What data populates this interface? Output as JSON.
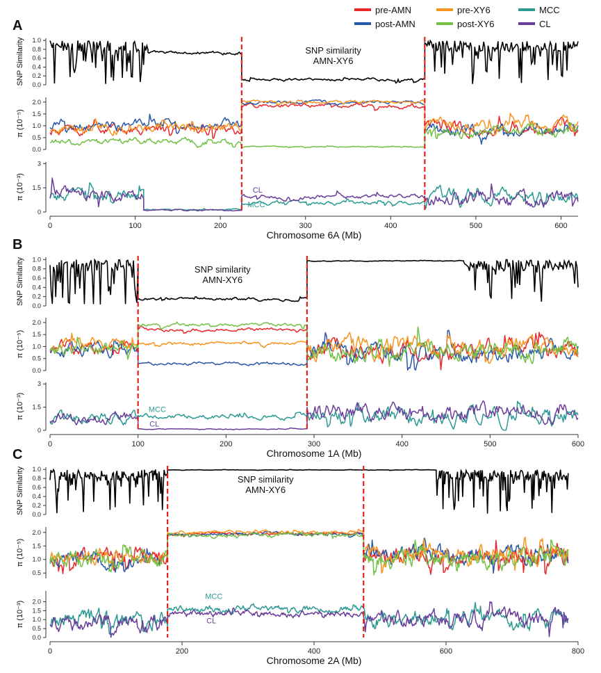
{
  "legend": [
    {
      "label": "pre-AMN",
      "color": "#e8282b"
    },
    {
      "label": "pre-XY6",
      "color": "#f7941d"
    },
    {
      "label": "MCC",
      "color": "#2b9a92"
    },
    {
      "label": "post-AMN",
      "color": "#2a57a8"
    },
    {
      "label": "post-XY6",
      "color": "#72c046"
    },
    {
      "label": "CL",
      "color": "#6a3d9a"
    }
  ],
  "chart_data": [
    {
      "panel": "A",
      "type": "line",
      "xlabel": "Chromosome 6A (Mb)",
      "xlim": [
        0,
        620
      ],
      "xticks": [
        0,
        100,
        200,
        300,
        400,
        500,
        600
      ],
      "boundaries": [
        225,
        440
      ],
      "similarity": {
        "ylabel": "SNP Similarity",
        "ylim": [
          0,
          1.05
        ],
        "yticks": [
          "0.0",
          "0.2",
          "0.4",
          "0.6",
          "0.8",
          "1.0"
        ],
        "annotation": [
          "SNP similarity",
          "AMN-XY6"
        ],
        "segments": [
          {
            "x": [
              0,
              115
            ],
            "level": 0.5,
            "noise": 0.9,
            "wild": true
          },
          {
            "x": [
              115,
              225
            ],
            "level": 0.72,
            "noise": 0.08
          },
          {
            "x": [
              225,
              440
            ],
            "level": 0.12,
            "noise": 0.07
          },
          {
            "x": [
              440,
              620
            ],
            "level": 0.65,
            "noise": 0.9,
            "wild": true
          }
        ]
      },
      "pi5": {
        "ylabel": "π (10⁻⁵)",
        "ylim": [
          0,
          2.2
        ],
        "yticks": [
          "0.0",
          "0.5",
          "1.0",
          "1.5",
          "2.0"
        ],
        "series": [
          {
            "name": "pre-AMN",
            "segments": [
              {
                "x": [
                  0,
                  225
                ],
                "level": 0.85,
                "noise": 0.45
              },
              {
                "x": [
                  225,
                  440
                ],
                "level": 1.85,
                "noise": 0.18
              },
              {
                "x": [
                  440,
                  620
                ],
                "level": 0.9,
                "noise": 0.55
              }
            ]
          },
          {
            "name": "post-AMN",
            "segments": [
              {
                "x": [
                  0,
                  225
                ],
                "level": 1.05,
                "noise": 0.45
              },
              {
                "x": [
                  225,
                  440
                ],
                "level": 2.0,
                "noise": 0.15
              },
              {
                "x": [
                  440,
                  620
                ],
                "level": 0.8,
                "noise": 0.6
              }
            ]
          },
          {
            "name": "pre-XY6",
            "segments": [
              {
                "x": [
                  0,
                  225
                ],
                "level": 0.9,
                "noise": 0.45
              },
              {
                "x": [
                  225,
                  440
                ],
                "level": 2.0,
                "noise": 0.15
              },
              {
                "x": [
                  440,
                  620
                ],
                "level": 1.0,
                "noise": 0.55
              }
            ]
          },
          {
            "name": "post-XY6",
            "segments": [
              {
                "x": [
                  0,
                  225
                ],
                "level": 0.35,
                "noise": 0.3
              },
              {
                "x": [
                  225,
                  440
                ],
                "level": 0.12,
                "noise": 0.05
              },
              {
                "x": [
                  440,
                  620
                ],
                "level": 0.8,
                "noise": 0.5
              }
            ]
          }
        ]
      },
      "pi3": {
        "ylabel": "π (10⁻³)",
        "ylim": [
          0,
          3.1
        ],
        "yticks": [
          "0",
          "1.5",
          "3"
        ],
        "labels": [
          {
            "text": "CL",
            "x": 238,
            "y": 1.2,
            "series": "CL"
          },
          {
            "text": "MCC",
            "x": 232,
            "y": 0.3,
            "series": "MCC"
          }
        ],
        "series": [
          {
            "name": "MCC",
            "segments": [
              {
                "x": [
                  0,
                  110
                ],
                "level": 1.1,
                "noise": 0.9
              },
              {
                "x": [
                  110,
                  225
                ],
                "level": 0.15,
                "noise": 0.1
              },
              {
                "x": [
                  225,
                  440
                ],
                "level": 0.55,
                "noise": 0.25
              },
              {
                "x": [
                  440,
                  620
                ],
                "level": 0.9,
                "noise": 1.0
              }
            ]
          },
          {
            "name": "CL",
            "segments": [
              {
                "x": [
                  0,
                  110
                ],
                "level": 1.1,
                "noise": 0.9
              },
              {
                "x": [
                  110,
                  225
                ],
                "level": 0.12,
                "noise": 0.1
              },
              {
                "x": [
                  225,
                  440
                ],
                "level": 0.95,
                "noise": 0.3
              },
              {
                "x": [
                  440,
                  620
                ],
                "level": 0.8,
                "noise": 1.0
              }
            ]
          }
        ]
      }
    },
    {
      "panel": "B",
      "type": "line",
      "xlabel": "Chromosome 1A (Mb)",
      "xlim": [
        0,
        600
      ],
      "xticks": [
        0,
        100,
        200,
        300,
        400,
        500,
        600
      ],
      "boundaries": [
        100,
        292
      ],
      "similarity": {
        "ylabel": "SNP Similarity",
        "ylim": [
          0,
          1.05
        ],
        "yticks": [
          "0.0",
          "0.2",
          "0.4",
          "0.6",
          "0.8",
          "1.0"
        ],
        "annotation": [
          "SNP similarity",
          "AMN-XY6"
        ],
        "segments": [
          {
            "x": [
              0,
              100
            ],
            "level": 0.65,
            "noise": 0.7,
            "wild": true
          },
          {
            "x": [
              100,
              292
            ],
            "level": 0.15,
            "noise": 0.07
          },
          {
            "x": [
              292,
              470
            ],
            "level": 0.97,
            "noise": 0.02
          },
          {
            "x": [
              470,
              600
            ],
            "level": 0.6,
            "noise": 0.9,
            "wild": true
          }
        ]
      },
      "pi5": {
        "ylabel": "π (10⁻⁵)",
        "ylim": [
          0,
          2.2
        ],
        "yticks": [
          "0.0",
          "0.5",
          "1.0",
          "1.5",
          "2.0"
        ],
        "series": [
          {
            "name": "pre-AMN",
            "segments": [
              {
                "x": [
                  0,
                  100
                ],
                "level": 1.0,
                "noise": 0.6
              },
              {
                "x": [
                  100,
                  292
                ],
                "level": 1.7,
                "noise": 0.15
              },
              {
                "x": [
                  292,
                  600
                ],
                "level": 0.9,
                "noise": 0.9
              }
            ]
          },
          {
            "name": "post-AMN",
            "segments": [
              {
                "x": [
                  0,
                  100
                ],
                "level": 0.9,
                "noise": 0.6
              },
              {
                "x": [
                  100,
                  292
                ],
                "level": 0.3,
                "noise": 0.15
              },
              {
                "x": [
                  292,
                  600
                ],
                "level": 0.8,
                "noise": 0.9
              }
            ]
          },
          {
            "name": "pre-XY6",
            "segments": [
              {
                "x": [
                  0,
                  100
                ],
                "level": 1.0,
                "noise": 0.6
              },
              {
                "x": [
                  100,
                  292
                ],
                "level": 1.15,
                "noise": 0.15
              },
              {
                "x": [
                  292,
                  600
                ],
                "level": 0.95,
                "noise": 0.9
              }
            ]
          },
          {
            "name": "post-XY6",
            "segments": [
              {
                "x": [
                  0,
                  100
                ],
                "level": 0.95,
                "noise": 0.6
              },
              {
                "x": [
                  100,
                  292
                ],
                "level": 1.9,
                "noise": 0.15
              },
              {
                "x": [
                  292,
                  600
                ],
                "level": 0.85,
                "noise": 0.9
              }
            ]
          }
        ]
      },
      "pi3": {
        "ylabel": "π (10⁻³)",
        "ylim": [
          0,
          3.1
        ],
        "yticks": [
          "0",
          "1.5",
          "3"
        ],
        "labels": [
          {
            "text": "MCC",
            "x": 112,
            "y": 1.2,
            "series": "MCC"
          },
          {
            "text": "CL",
            "x": 113,
            "y": 0.25,
            "series": "CL"
          }
        ],
        "series": [
          {
            "name": "MCC",
            "segments": [
              {
                "x": [
                  0,
                  100
                ],
                "level": 0.8,
                "noise": 0.8
              },
              {
                "x": [
                  100,
                  292
                ],
                "level": 0.9,
                "noise": 0.35
              },
              {
                "x": [
                  292,
                  600
                ],
                "level": 1.0,
                "noise": 1.2
              }
            ]
          },
          {
            "name": "CL",
            "segments": [
              {
                "x": [
                  0,
                  100
                ],
                "level": 0.8,
                "noise": 0.8
              },
              {
                "x": [
                  100,
                  292
                ],
                "level": 0.08,
                "noise": 0.06
              },
              {
                "x": [
                  292,
                  600
                ],
                "level": 1.2,
                "noise": 1.2
              }
            ]
          }
        ]
      }
    },
    {
      "panel": "C",
      "type": "line",
      "xlabel": "Chromosome 2A (Mb)",
      "xlim": [
        0,
        800
      ],
      "xticks": [
        0,
        200,
        400,
        600,
        800
      ],
      "boundaries": [
        178,
        475
      ],
      "similarity": {
        "ylabel": "SNP Similarity",
        "ylim": [
          0,
          1.05
        ],
        "yticks": [
          "0.0",
          "0.2",
          "0.4",
          "0.6",
          "0.8",
          "1.0"
        ],
        "annotation": [
          "SNP similarity",
          "AMN-XY6"
        ],
        "segments": [
          {
            "x": [
              0,
              178
            ],
            "level": 0.6,
            "noise": 0.9,
            "wild": true
          },
          {
            "x": [
              178,
              585
            ],
            "level": 0.99,
            "noise": 0.01
          },
          {
            "x": [
              585,
              690
            ],
            "level": 0.9,
            "noise": 0.5,
            "wild": true
          },
          {
            "x": [
              690,
              785
            ],
            "level": 0.55,
            "noise": 0.9,
            "wild": true
          }
        ]
      },
      "pi5": {
        "ylabel": "π (10⁻⁵)",
        "ylim": [
          0.3,
          2.2
        ],
        "yticks": [
          "0.5",
          "1.0",
          "1.5",
          "2.0"
        ],
        "series": [
          {
            "name": "pre-AMN",
            "segments": [
              {
                "x": [
                  0,
                  178
                ],
                "level": 1.1,
                "noise": 0.6
              },
              {
                "x": [
                  178,
                  475
                ],
                "level": 1.95,
                "noise": 0.12
              },
              {
                "x": [
                  475,
                  785
                ],
                "level": 1.1,
                "noise": 0.7
              }
            ]
          },
          {
            "name": "post-AMN",
            "segments": [
              {
                "x": [
                  0,
                  178
                ],
                "level": 1.0,
                "noise": 0.6
              },
              {
                "x": [
                  178,
                  475
                ],
                "level": 1.95,
                "noise": 0.12
              },
              {
                "x": [
                  475,
                  785
                ],
                "level": 1.2,
                "noise": 0.7
              }
            ]
          },
          {
            "name": "pre-XY6",
            "segments": [
              {
                "x": [
                  0,
                  178
                ],
                "level": 1.1,
                "noise": 0.6
              },
              {
                "x": [
                  178,
                  475
                ],
                "level": 2.0,
                "noise": 0.12
              },
              {
                "x": [
                  475,
                  785
                ],
                "level": 1.2,
                "noise": 0.7
              }
            ]
          },
          {
            "name": "post-XY6",
            "segments": [
              {
                "x": [
                  0,
                  178
                ],
                "level": 1.0,
                "noise": 0.7
              },
              {
                "x": [
                  178,
                  475
                ],
                "level": 1.9,
                "noise": 0.15
              },
              {
                "x": [
                  475,
                  785
                ],
                "level": 1.1,
                "noise": 0.8
              }
            ]
          }
        ]
      },
      "pi3": {
        "ylabel": "π (10⁻³)",
        "ylim": [
          0,
          2.6
        ],
        "yticks": [
          "0.0",
          "0.5",
          "1.0",
          "1.5",
          "2.0"
        ],
        "labels": [
          {
            "text": "MCC",
            "x": 235,
            "y": 2.15,
            "series": "MCC"
          },
          {
            "text": "CL",
            "x": 237,
            "y": 0.8,
            "series": "CL"
          }
        ],
        "series": [
          {
            "name": "MCC",
            "segments": [
              {
                "x": [
                  0,
                  178
                ],
                "level": 1.0,
                "noise": 1.0
              },
              {
                "x": [
                  178,
                  475
                ],
                "level": 1.6,
                "noise": 0.4
              },
              {
                "x": [
                  475,
                  785
                ],
                "level": 1.0,
                "noise": 1.0
              }
            ]
          },
          {
            "name": "CL",
            "segments": [
              {
                "x": [
                  0,
                  178
                ],
                "level": 0.9,
                "noise": 1.0
              },
              {
                "x": [
                  178,
                  475
                ],
                "level": 1.35,
                "noise": 0.4
              },
              {
                "x": [
                  475,
                  785
                ],
                "level": 1.0,
                "noise": 1.0
              }
            ]
          }
        ]
      }
    }
  ]
}
